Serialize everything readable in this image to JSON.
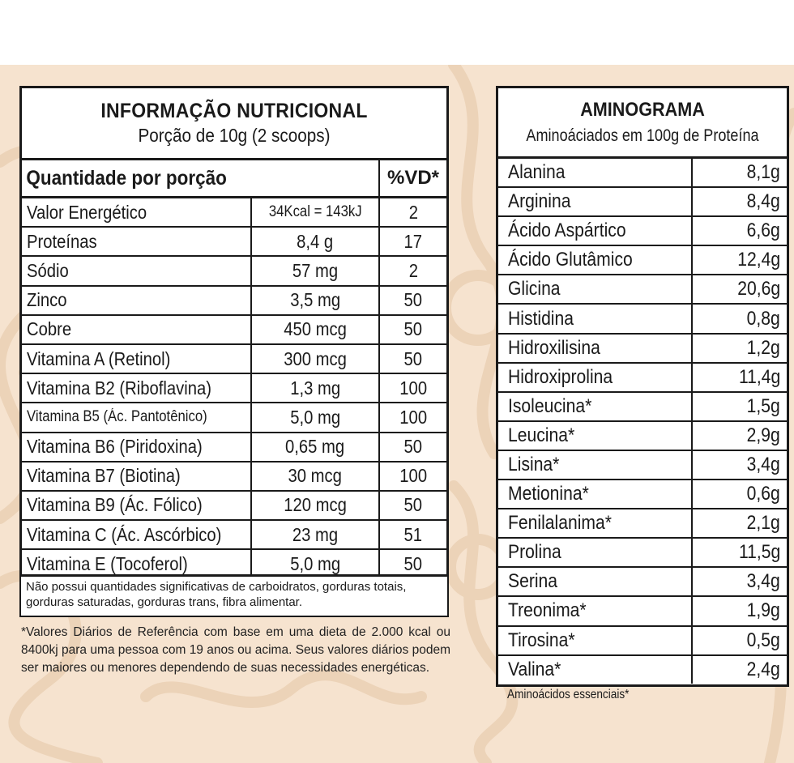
{
  "nutrition": {
    "title": "INFORMAÇÃO NUTRICIONAL",
    "serving": "Porção de 10g (2 scoops)",
    "qty_header": "Quantidade por porção",
    "vd_header": "%VD*",
    "rows": [
      {
        "name": "Valor Energético",
        "amount": "34Kcal = 143kJ",
        "vd": "2"
      },
      {
        "name": "Proteínas",
        "amount": "8,4 g",
        "vd": "17"
      },
      {
        "name": "Sódio",
        "amount": "57 mg",
        "vd": "2"
      },
      {
        "name": "Zinco",
        "amount": "3,5 mg",
        "vd": "50"
      },
      {
        "name": "Cobre",
        "amount": "450 mcg",
        "vd": "50"
      },
      {
        "name": "Vitamina A (Retinol)",
        "amount": "300 mcg",
        "vd": "50"
      },
      {
        "name": "Vitamina B2 (Riboflavina)",
        "amount": "1,3 mg",
        "vd": "100"
      },
      {
        "name": "Vitamina B5 (Ác. Pantotênico)",
        "amount": "5,0 mg",
        "vd": "100"
      },
      {
        "name": "Vitamina B6 (Piridoxina)",
        "amount": "0,65 mg",
        "vd": "50"
      },
      {
        "name": "Vitamina B7 (Biotina)",
        "amount": "30 mcg",
        "vd": "100"
      },
      {
        "name": "Vitamina B9 (Ác. Fólico)",
        "amount": "120 mcg",
        "vd": "50"
      },
      {
        "name": "Vitamina C (Ác. Ascórbico)",
        "amount": "23 mg",
        "vd": "51"
      },
      {
        "name": "Vitamina E (Tocoferol)",
        "amount": "5,0 mg",
        "vd": "50"
      }
    ],
    "disclaimer": "Não possui quantidades significativas de carboidratos, gorduras totais, gorduras saturadas, gorduras trans, fibra alimentar.",
    "footnote": "*Valores Diários de Referência com base em uma dieta de 2.000 kcal ou 8400kj para uma pessoa com 19 anos ou acima. Seus valores diários podem ser maiores ou menores dependendo de suas necessidades energéticas."
  },
  "aminogram": {
    "title": "AMINOGRAMA",
    "subtitle": "Aminoáciados em 100g de Proteína",
    "rows": [
      {
        "name": "Alanina",
        "value": "8,1g"
      },
      {
        "name": "Arginina",
        "value": "8,4g"
      },
      {
        "name": "Ácido Aspártico",
        "value": "6,6g"
      },
      {
        "name": "Ácido Glutâmico",
        "value": "12,4g"
      },
      {
        "name": "Glicina",
        "value": "20,6g"
      },
      {
        "name": "Histidina",
        "value": "0,8g"
      },
      {
        "name": "Hidroxilisina",
        "value": "1,2g"
      },
      {
        "name": "Hidroxiprolina",
        "value": "11,4g"
      },
      {
        "name": "Isoleucina*",
        "value": "1,5g"
      },
      {
        "name": "Leucina*",
        "value": "2,9g"
      },
      {
        "name": "Lisina*",
        "value": "3,4g"
      },
      {
        "name": "Metionina*",
        "value": "0,6g"
      },
      {
        "name": "Fenilalanima*",
        "value": "2,1g"
      },
      {
        "name": "Prolina",
        "value": "11,5g"
      },
      {
        "name": "Serina",
        "value": "3,4g"
      },
      {
        "name": "Treonima*",
        "value": "1,9g"
      },
      {
        "name": "Tirosina*",
        "value": "0,5g"
      },
      {
        "name": "Valina*",
        "value": "2,4g"
      }
    ],
    "note": "Aminoácidos essenciais*"
  },
  "colors": {
    "background": "#f6e3cf",
    "ink": "#1a1a1a",
    "ornament": "#e9cfb3"
  }
}
